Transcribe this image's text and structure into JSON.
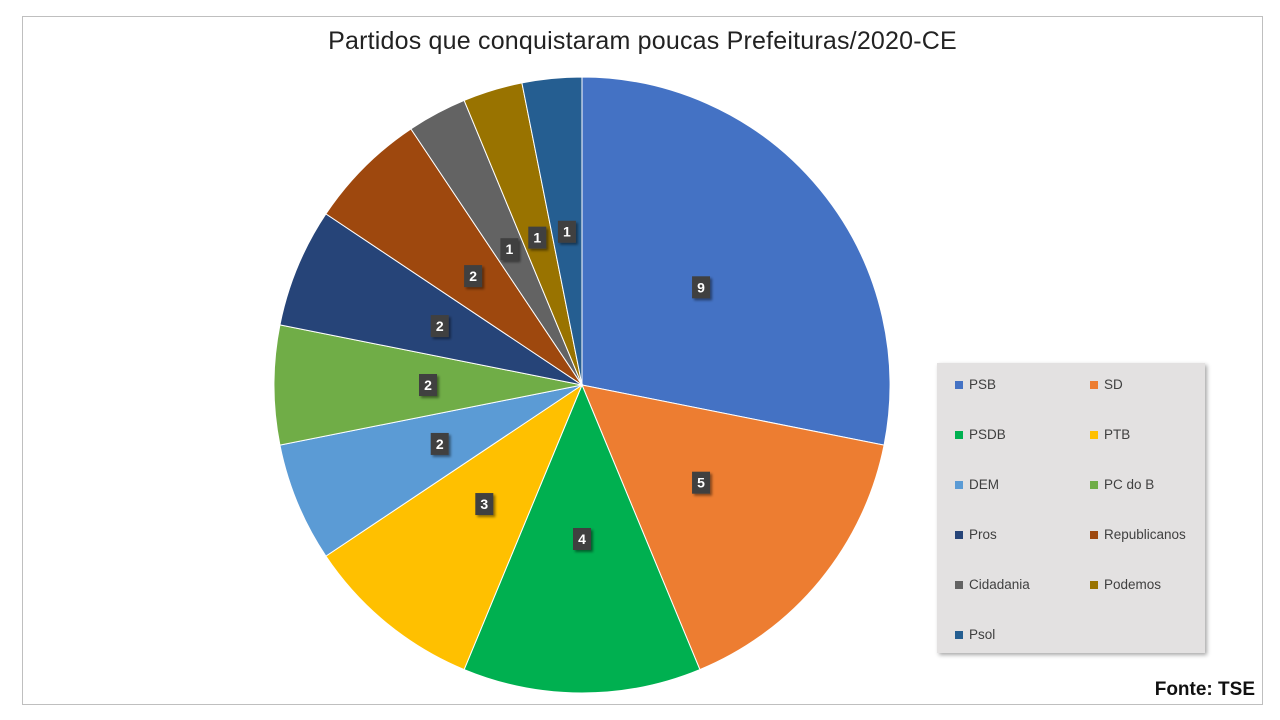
{
  "chart_data": {
    "type": "pie",
    "title": "Partidos que conquistaram poucas Prefeituras/2020-CE",
    "source": "Fonte: TSE",
    "legend_position": "right",
    "series": [
      {
        "name": "PSB",
        "value": 9,
        "label": "9",
        "color": "#4472c4"
      },
      {
        "name": "SD",
        "value": 5,
        "label": "5",
        "color": "#ed7d31"
      },
      {
        "name": "PSDB",
        "value": 4,
        "label": "4",
        "color": "#00b050"
      },
      {
        "name": "PTB",
        "value": 3,
        "label": "3",
        "color": "#ffc000"
      },
      {
        "name": "DEM",
        "value": 2,
        "label": "2",
        "color": "#5b9bd5"
      },
      {
        "name": "PC do B",
        "value": 2,
        "label": "2",
        "color": "#70ad47"
      },
      {
        "name": "Pros",
        "value": 2,
        "label": "2",
        "color": "#264478"
      },
      {
        "name": "Republicanos",
        "value": 2,
        "label": "2",
        "color": "#9e480e"
      },
      {
        "name": "Cidadania",
        "value": 1,
        "label": "1",
        "color": "#636363"
      },
      {
        "name": "Podemos",
        "value": 1,
        "label": "1",
        "color": "#997300"
      },
      {
        "name": "Psol",
        "value": 1,
        "label": "1",
        "color": "#255e91"
      }
    ]
  }
}
